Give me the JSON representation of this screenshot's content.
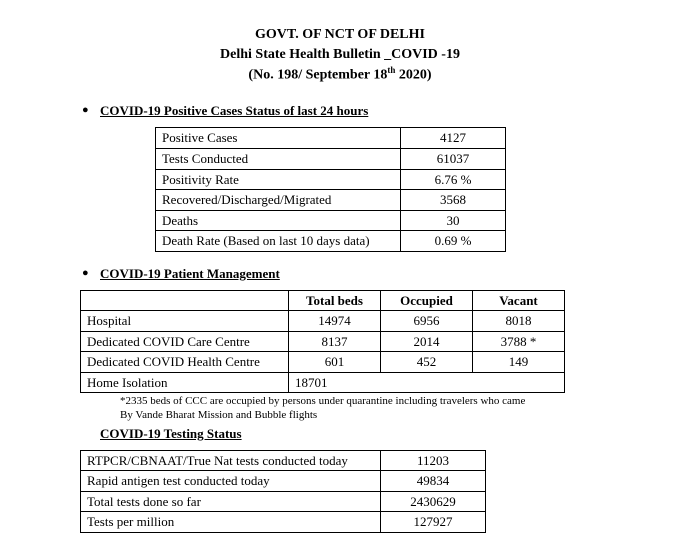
{
  "header": {
    "org": "GOVT. OF NCT OF DELHI",
    "title": "Delhi State Health Bulletin _COVID -19",
    "meta_prefix": "(No. 198/ September 18",
    "meta_sup": "th",
    "meta_suffix": " 2020)"
  },
  "section1": {
    "heading": "COVID-19 Positive Cases Status of last 24 hours",
    "rows": [
      {
        "label": "Positive Cases",
        "value": "4127"
      },
      {
        "label": "Tests Conducted",
        "value": "61037"
      },
      {
        "label": "Positivity Rate",
        "value": "6.76 %"
      },
      {
        "label": "Recovered/Discharged/Migrated",
        "value": "3568"
      },
      {
        "label": "Deaths",
        "value": "30"
      },
      {
        "label": "Death Rate (Based on last 10 days data)",
        "value": "0.69 %"
      }
    ]
  },
  "section2": {
    "heading": "COVID-19 Patient Management",
    "columns": [
      "",
      "Total beds",
      "Occupied",
      "Vacant"
    ],
    "rows": [
      {
        "label": "Hospital",
        "total": "14974",
        "occupied": "6956",
        "vacant": "8018"
      },
      {
        "label": "Dedicated COVID Care Centre",
        "total": "8137",
        "occupied": "2014",
        "vacant": "3788 *"
      },
      {
        "label": "Dedicated COVID Health Centre",
        "total": "601",
        "occupied": "452",
        "vacant": "149"
      }
    ],
    "isolation_label": "Home Isolation",
    "isolation_value": "18701",
    "footnote_l1": "*2335 beds of CCC are occupied by persons under quarantine including travelers who came",
    "footnote_l2": "By Vande Bharat Mission and Bubble flights"
  },
  "section3": {
    "heading": "COVID-19 Testing Status",
    "rows": [
      {
        "label": "RTPCR/CBNAAT/True Nat tests conducted today",
        "value": "11203"
      },
      {
        "label": "Rapid antigen test conducted today",
        "value": "49834"
      },
      {
        "label": "Total tests done so far",
        "value": "2430629"
      },
      {
        "label": "Tests per million",
        "value": "127927"
      }
    ]
  }
}
